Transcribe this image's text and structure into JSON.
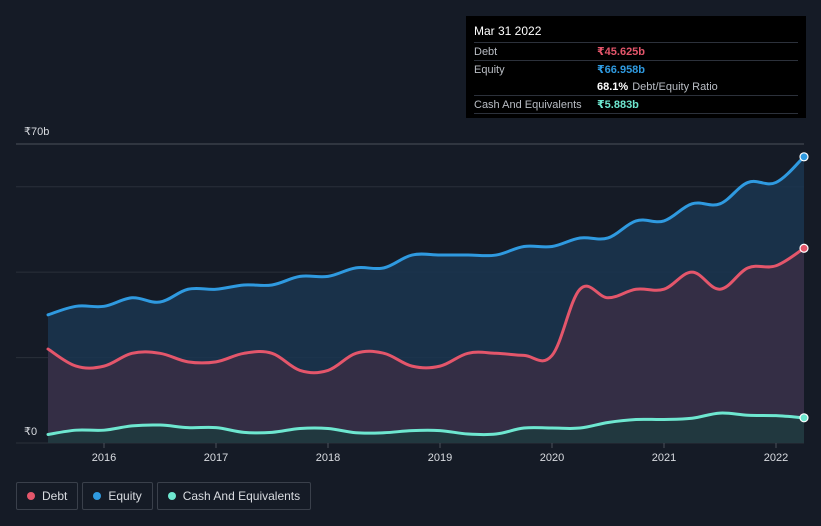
{
  "tooltip": {
    "date": "Mar 31 2022",
    "rows": [
      {
        "label": "Debt",
        "value": "₹45.625b",
        "color": "#e4566b"
      },
      {
        "label": "Equity",
        "value": "₹66.958b",
        "color": "#2f9ae0"
      },
      {
        "label": "",
        "value": "68.1%",
        "sub": "Debt/Equity Ratio",
        "color": "#ffffff"
      },
      {
        "label": "Cash And Equivalents",
        "value": "₹5.883b",
        "color": "#6ee7d0"
      }
    ]
  },
  "legend": [
    {
      "label": "Debt",
      "color": "#e4566b"
    },
    {
      "label": "Equity",
      "color": "#2f9ae0"
    },
    {
      "label": "Cash And Equivalents",
      "color": "#6ee7d0"
    }
  ],
  "chart_data": {
    "type": "area",
    "title": "",
    "xlabel": "",
    "ylabel": "",
    "y_top_label": "₹70b",
    "y_bottom_label": "₹0",
    "ylim": [
      0,
      70
    ],
    "xlim": [
      2015.5,
      2022.25
    ],
    "xticks": [
      2016,
      2017,
      2018,
      2019,
      2020,
      2021,
      2022
    ],
    "xtick_labels": [
      "2016",
      "2017",
      "2018",
      "2019",
      "2020",
      "2021",
      "2022"
    ],
    "series": [
      {
        "name": "Equity",
        "color": "#2f9ae0",
        "fill": "#1a3550",
        "points": [
          [
            2015.5,
            30
          ],
          [
            2015.75,
            32
          ],
          [
            2016.0,
            32
          ],
          [
            2016.25,
            34
          ],
          [
            2016.5,
            33
          ],
          [
            2016.75,
            36
          ],
          [
            2017.0,
            36
          ],
          [
            2017.25,
            37
          ],
          [
            2017.5,
            37
          ],
          [
            2017.75,
            39
          ],
          [
            2018.0,
            39
          ],
          [
            2018.25,
            41
          ],
          [
            2018.5,
            41
          ],
          [
            2018.75,
            44
          ],
          [
            2019.0,
            44
          ],
          [
            2019.25,
            44
          ],
          [
            2019.5,
            44
          ],
          [
            2019.75,
            46
          ],
          [
            2020.0,
            46
          ],
          [
            2020.25,
            48
          ],
          [
            2020.5,
            48
          ],
          [
            2020.75,
            52
          ],
          [
            2021.0,
            52
          ],
          [
            2021.25,
            56
          ],
          [
            2021.5,
            56
          ],
          [
            2021.75,
            61
          ],
          [
            2022.0,
            61
          ],
          [
            2022.25,
            67
          ]
        ]
      },
      {
        "name": "Debt",
        "color": "#e4566b",
        "fill": "#3a2e44",
        "points": [
          [
            2015.5,
            22
          ],
          [
            2015.75,
            18
          ],
          [
            2016.0,
            18
          ],
          [
            2016.25,
            21
          ],
          [
            2016.5,
            21
          ],
          [
            2016.75,
            19
          ],
          [
            2017.0,
            19
          ],
          [
            2017.25,
            21
          ],
          [
            2017.5,
            21
          ],
          [
            2017.75,
            17
          ],
          [
            2018.0,
            17
          ],
          [
            2018.25,
            21
          ],
          [
            2018.5,
            21
          ],
          [
            2018.75,
            18
          ],
          [
            2019.0,
            18
          ],
          [
            2019.25,
            21
          ],
          [
            2019.5,
            21
          ],
          [
            2019.75,
            20.5
          ],
          [
            2020.0,
            20.5
          ],
          [
            2020.25,
            36
          ],
          [
            2020.5,
            34
          ],
          [
            2020.75,
            36
          ],
          [
            2021.0,
            36
          ],
          [
            2021.25,
            40
          ],
          [
            2021.5,
            36
          ],
          [
            2021.75,
            41
          ],
          [
            2022.0,
            41.5
          ],
          [
            2022.25,
            45.6
          ]
        ]
      },
      {
        "name": "Cash And Equivalents",
        "color": "#6ee7d0",
        "fill": "#1f3a3e",
        "points": [
          [
            2015.5,
            2
          ],
          [
            2015.75,
            3
          ],
          [
            2016.0,
            3
          ],
          [
            2016.25,
            4
          ],
          [
            2016.5,
            4.2
          ],
          [
            2016.75,
            3.6
          ],
          [
            2017.0,
            3.6
          ],
          [
            2017.25,
            2.5
          ],
          [
            2017.5,
            2.5
          ],
          [
            2017.75,
            3.4
          ],
          [
            2018.0,
            3.4
          ],
          [
            2018.25,
            2.4
          ],
          [
            2018.5,
            2.4
          ],
          [
            2018.75,
            2.9
          ],
          [
            2019.0,
            2.9
          ],
          [
            2019.25,
            2.1
          ],
          [
            2019.5,
            2.1
          ],
          [
            2019.75,
            3.5
          ],
          [
            2020.0,
            3.5
          ],
          [
            2020.25,
            3.5
          ],
          [
            2020.5,
            4.8
          ],
          [
            2020.75,
            5.5
          ],
          [
            2021.0,
            5.5
          ],
          [
            2021.25,
            5.8
          ],
          [
            2021.5,
            7
          ],
          [
            2021.75,
            6.5
          ],
          [
            2022.0,
            6.4
          ],
          [
            2022.25,
            5.9
          ]
        ]
      }
    ]
  }
}
